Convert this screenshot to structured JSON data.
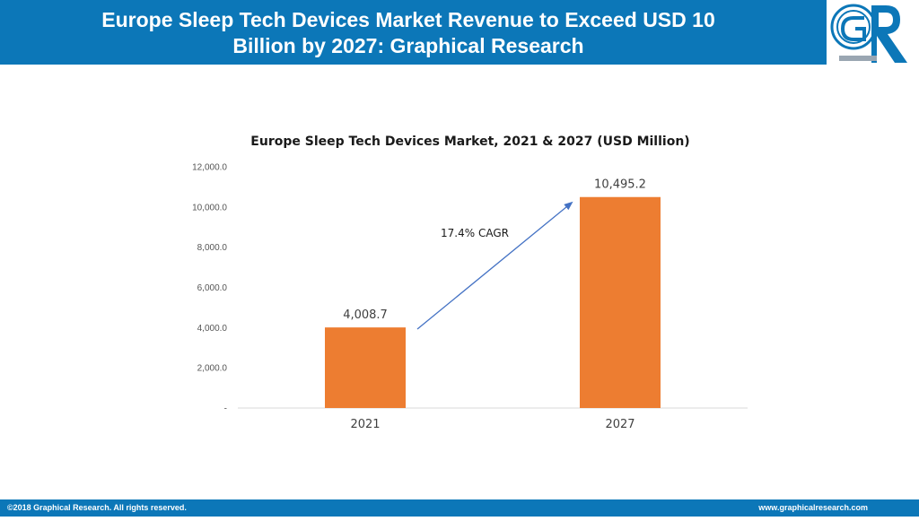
{
  "header": {
    "title_line1": "Europe Sleep Tech Devices Market Revenue to Exceed USD 10",
    "title_line2": "Billion by 2027: Graphical Research",
    "bg_color": "#0c77b8"
  },
  "logo": {
    "text": "GR",
    "icon": "graphical-research-logo"
  },
  "footer": {
    "left": "©2018 Graphical Research. All rights reserved.",
    "right": "www.graphicalresearch.com"
  },
  "chart_data": {
    "type": "bar",
    "title": "Europe Sleep Tech Devices Market, 2021 & 2027 (USD Million)",
    "categories": [
      "2021",
      "2027"
    ],
    "values": [
      4008.7,
      10495.2
    ],
    "value_labels": [
      "4,008.7",
      "10,495.2"
    ],
    "ylim": [
      0,
      12000
    ],
    "yticks": [
      0,
      2000,
      4000,
      6000,
      8000,
      10000,
      12000
    ],
    "ytick_labels": [
      "-",
      "2,000.0",
      "4,000.0",
      "6,000.0",
      "8,000.0",
      "10,000.0",
      "12,000.0"
    ],
    "bar_color": "#ed7d31",
    "annotation": "17.4% CAGR",
    "arrow_color": "#4472c4",
    "grid": false
  }
}
